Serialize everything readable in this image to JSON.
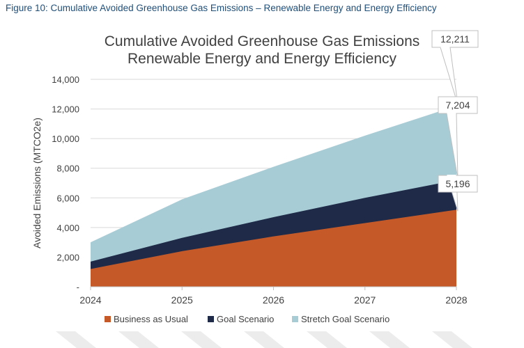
{
  "caption": "Figure 10: Cumulative Avoided Greenhouse Gas Emissions – Renewable Energy and Energy Efficiency",
  "colors": {
    "bau": "#c55a28",
    "goal": "#1e2a47",
    "stretch": "#a8ccd6",
    "axis_text": "#404040",
    "title_text": "#404040",
    "gridline": "#d9d9d9",
    "callout_border": "#bfbfbf"
  },
  "chart_data": {
    "type": "area",
    "stacked": false,
    "title": [
      "Cumulative Avoided Greenhouse Gas Emissions",
      "Renewable Energy and Energy Efficiency"
    ],
    "ylabel": "Avoided Emissions (MTCO2e)",
    "xlabel": "",
    "ylim": [
      0,
      14000
    ],
    "y_ticks": [
      "-",
      "2,000",
      "4,000",
      "6,000",
      "8,000",
      "10,000",
      "12,000",
      "14,000"
    ],
    "y_tick_values": [
      0,
      2000,
      4000,
      6000,
      8000,
      10000,
      12000,
      14000
    ],
    "x": [
      "2024",
      "2025",
      "2026",
      "2027",
      "2028"
    ],
    "series": [
      {
        "name": "Stretch Goal Scenario",
        "color": "#a8ccd6",
        "values": [
          3000,
          5900,
          8100,
          10200,
          12211
        ]
      },
      {
        "name": "Goal Scenario",
        "color": "#1e2a47",
        "values": [
          1700,
          3300,
          4700,
          6000,
          7204
        ]
      },
      {
        "name": "Business as Usual",
        "color": "#c55a28",
        "values": [
          1200,
          2400,
          3400,
          4300,
          5196
        ]
      }
    ],
    "legend": [
      "Business as Usual",
      "Goal Scenario",
      "Stretch Goal Scenario"
    ],
    "legend_position": "bottom",
    "annotations": [
      {
        "text": "12,211",
        "value": 12211,
        "x": "2028"
      },
      {
        "text": "7,204",
        "value": 7204,
        "x": "2028"
      },
      {
        "text": "5,196",
        "value": 5196,
        "x": "2028"
      }
    ]
  }
}
